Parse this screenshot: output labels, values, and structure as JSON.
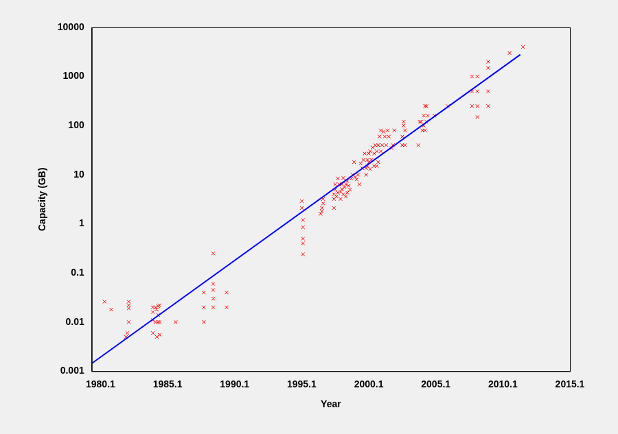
{
  "chart_data": {
    "type": "scatter",
    "x_label": "Year",
    "y_label": "Capacity (GB)",
    "log": "y",
    "grid": false,
    "xlim": [
      1979.45,
      2015.1
    ],
    "xticks": [
      1980.1,
      1985.1,
      1990.1,
      1995.1,
      2000.1,
      2005.1,
      2010.1,
      2015.1
    ],
    "ylim": [
      0.001,
      10000
    ],
    "yticks": [
      0.001,
      0.01,
      0.1,
      1,
      10,
      100,
      1000,
      10000
    ],
    "series": [
      {
        "type": "scatter",
        "color": "#ff0000",
        "marker": "x",
        "x": [
          1980.4,
          1980.9,
          1982.0,
          1982.1,
          1982.2,
          1982.2,
          1982.2,
          1982.2,
          1984.0,
          1984.0,
          1984.0,
          1984.0,
          1984.2,
          1984.2,
          1984.3,
          1984.3,
          1984.4,
          1984.4,
          1984.4,
          1984.5,
          1984.5,
          1984.5,
          1985.7,
          1987.8,
          1987.8,
          1987.8,
          1988.5,
          1988.5,
          1988.5,
          1988.5,
          1988.5,
          1989.5,
          1989.5,
          1995.1,
          1995.1,
          1995.2,
          1995.2,
          1995.2,
          1995.2,
          1995.2,
          1996.5,
          1996.6,
          1996.6,
          1996.7,
          1996.7,
          1997.5,
          1997.5,
          1997.5,
          1997.6,
          1997.6,
          1997.7,
          1997.8,
          1997.8,
          1997.9,
          1998.0,
          1998.0,
          1998.1,
          1998.1,
          1998.2,
          1998.2,
          1998.3,
          1998.4,
          1998.4,
          1998.5,
          1998.5,
          1998.6,
          1998.7,
          1998.8,
          1998.9,
          1999.0,
          1999.1,
          1999.2,
          1999.3,
          1999.4,
          1999.5,
          1999.6,
          1999.7,
          1999.8,
          1999.9,
          1999.9,
          2000.0,
          2000.0,
          2000.1,
          2000.1,
          2000.2,
          2000.2,
          2000.3,
          2000.4,
          2000.5,
          2000.5,
          2000.6,
          2000.7,
          2000.7,
          2000.8,
          2000.8,
          2000.9,
          2001.0,
          2001.0,
          2001.1,
          2001.2,
          2001.3,
          2001.4,
          2001.5,
          2001.6,
          2001.8,
          2001.9,
          2002.0,
          2002.6,
          2002.6,
          2002.7,
          2002.7,
          2002.8,
          2002.8,
          2003.8,
          2003.9,
          2004.0,
          2004.1,
          2004.2,
          2004.2,
          2004.3,
          2004.3,
          2004.4,
          2004.4,
          2004.5,
          2005.0,
          2006.0,
          2007.8,
          2007.8,
          2007.8,
          2008.2,
          2008.2,
          2008.2,
          2008.2,
          2009.0,
          2009.0,
          2009.0,
          2009.0,
          2010.6,
          2011.6
        ],
        "values": [
          0.026,
          0.018,
          0.005,
          0.006,
          0.026,
          0.022,
          0.019,
          0.01,
          0.02,
          0.016,
          0.011,
          0.006,
          0.02,
          0.01,
          0.018,
          0.005,
          0.021,
          0.014,
          0.01,
          0.022,
          0.01,
          0.0055,
          0.01,
          0.04,
          0.02,
          0.01,
          0.25,
          0.06,
          0.045,
          0.03,
          0.02,
          0.04,
          0.02,
          2.9,
          2.1,
          1.2,
          0.85,
          0.5,
          0.4,
          0.24,
          1.6,
          1.8,
          2.1,
          2.6,
          3.2,
          2.1,
          3.2,
          4,
          5,
          6.4,
          3.6,
          4.3,
          8.4,
          6.4,
          3.2,
          4.5,
          5.1,
          6.4,
          8.6,
          4,
          5.6,
          6.4,
          3.6,
          4.3,
          7.5,
          6,
          5,
          8.4,
          10,
          18,
          9,
          8,
          10,
          6.4,
          17,
          13.6,
          20,
          27,
          10,
          13.6,
          15,
          20,
          27,
          18,
          13,
          30,
          20,
          36,
          15,
          27,
          40,
          30,
          15,
          18,
          40,
          60,
          30,
          80,
          40,
          75,
          60,
          40,
          80,
          60,
          35,
          40,
          80,
          40,
          60,
          100,
          120,
          40,
          80,
          40,
          120,
          120,
          80,
          100,
          160,
          250,
          80,
          120,
          250,
          160,
          160,
          250,
          1000,
          500,
          250,
          1000,
          500,
          250,
          150,
          2000,
          1500,
          500,
          250,
          3000,
          4000
        ]
      },
      {
        "type": "line",
        "color": "#0000ff",
        "line_style": "solid",
        "x": [
          1979.45,
          2011.4
        ],
        "values": [
          0.00144,
          2800
        ]
      }
    ]
  }
}
